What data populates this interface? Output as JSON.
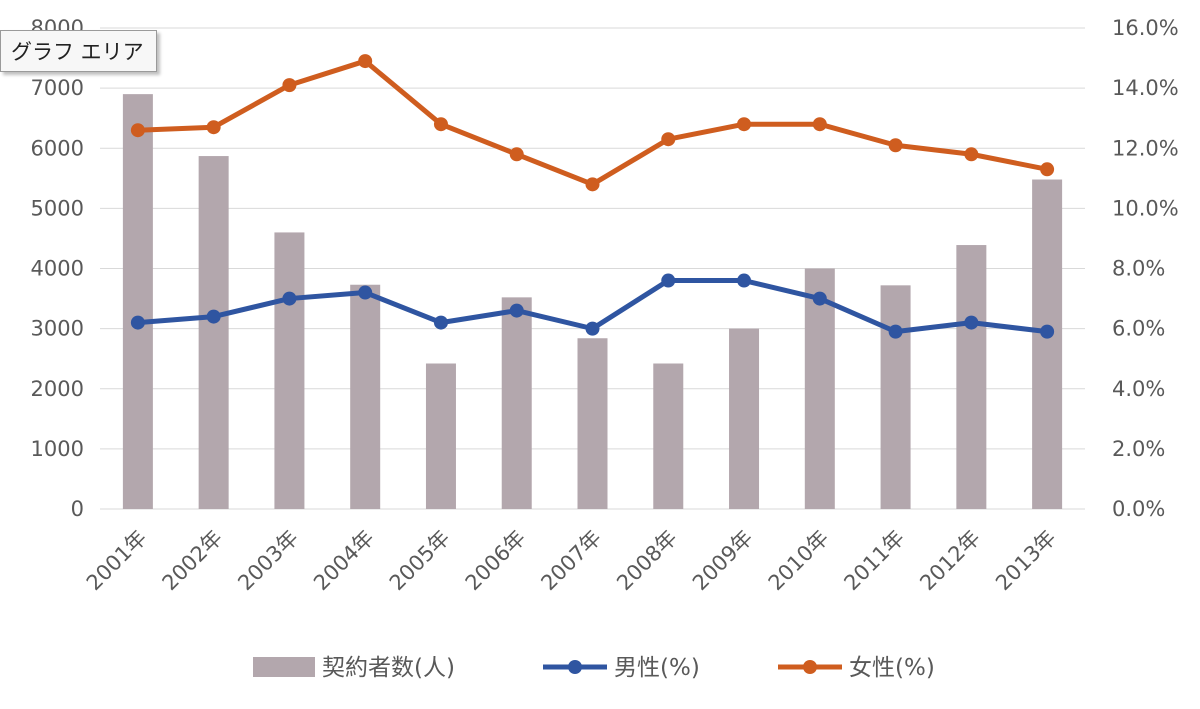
{
  "tooltip": {
    "label": "グラフ エリア"
  },
  "colors": {
    "bar": "#b3a7ad",
    "male": "#2f55a1",
    "female": "#cf5d1f",
    "grid": "#d9d9d9",
    "axis_text": "#595959"
  },
  "chart_data": {
    "type": "bar",
    "categories": [
      "2001年",
      "2002年",
      "2003年",
      "2004年",
      "2005年",
      "2006年",
      "2007年",
      "2008年",
      "2009年",
      "2010年",
      "2011年",
      "2012年",
      "2013年"
    ],
    "series": [
      {
        "name": "契約者数(人)",
        "type": "bar",
        "axis": "left",
        "values": [
          6900,
          5870,
          4600,
          3730,
          2420,
          3520,
          2840,
          2420,
          3000,
          4000,
          3720,
          4390,
          5480
        ]
      },
      {
        "name": "男性(%)",
        "type": "line",
        "axis": "right",
        "values": [
          6.2,
          6.4,
          7.0,
          7.2,
          6.2,
          6.6,
          6.0,
          7.6,
          7.6,
          7.0,
          5.9,
          6.2,
          5.9
        ]
      },
      {
        "name": "女性(%)",
        "type": "line",
        "axis": "right",
        "values": [
          12.6,
          12.7,
          14.1,
          14.9,
          12.8,
          11.8,
          10.8,
          12.3,
          12.8,
          12.8,
          12.1,
          11.8,
          11.3
        ]
      }
    ],
    "left_axis": {
      "min": 0,
      "max": 8000,
      "ticks": [
        "0",
        "1000",
        "2000",
        "3000",
        "4000",
        "5000",
        "6000",
        "7000",
        "8000"
      ]
    },
    "right_axis": {
      "min": 0,
      "max": 16,
      "ticks": [
        "0.0%",
        "2.0%",
        "4.0%",
        "6.0%",
        "8.0%",
        "10.0%",
        "12.0%",
        "14.0%",
        "16.0%"
      ]
    },
    "grid": true,
    "legend_position": "bottom"
  }
}
